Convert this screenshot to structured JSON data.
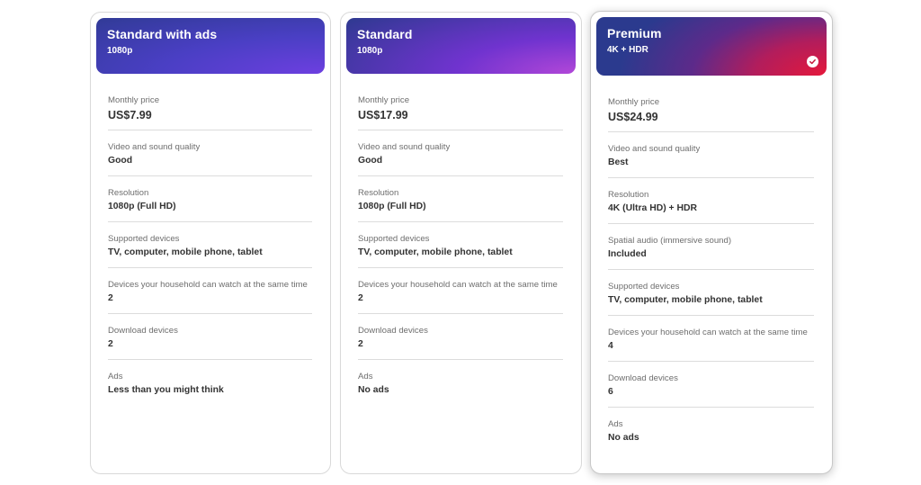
{
  "plans": [
    {
      "name": "Standard with ads",
      "resolution_badge": "1080p",
      "selected": false,
      "rows": [
        {
          "label": "Monthly price",
          "value": "US$7.99"
        },
        {
          "label": "Video and sound quality",
          "value": "Good"
        },
        {
          "label": "Resolution",
          "value": "1080p (Full HD)"
        },
        {
          "label": "Supported devices",
          "value": "TV, computer, mobile phone, tablet"
        },
        {
          "label": "Devices your household can watch at the same time",
          "value": "2"
        },
        {
          "label": "Download devices",
          "value": "2"
        },
        {
          "label": "Ads",
          "value": "Less than you might think"
        }
      ]
    },
    {
      "name": "Standard",
      "resolution_badge": "1080p",
      "selected": false,
      "rows": [
        {
          "label": "Monthly price",
          "value": "US$17.99"
        },
        {
          "label": "Video and sound quality",
          "value": "Good"
        },
        {
          "label": "Resolution",
          "value": "1080p (Full HD)"
        },
        {
          "label": "Supported devices",
          "value": "TV, computer, mobile phone, tablet"
        },
        {
          "label": "Devices your household can watch at the same time",
          "value": "2"
        },
        {
          "label": "Download devices",
          "value": "2"
        },
        {
          "label": "Ads",
          "value": "No ads"
        }
      ]
    },
    {
      "name": "Premium",
      "resolution_badge": "4K + HDR",
      "selected": true,
      "rows": [
        {
          "label": "Monthly price",
          "value": "US$24.99"
        },
        {
          "label": "Video and sound quality",
          "value": "Best"
        },
        {
          "label": "Resolution",
          "value": "4K (Ultra HD) + HDR"
        },
        {
          "label": "Spatial audio (immersive sound)",
          "value": "Included"
        },
        {
          "label": "Supported devices",
          "value": "TV, computer, mobile phone, tablet"
        },
        {
          "label": "Devices your household can watch at the same time",
          "value": "4"
        },
        {
          "label": "Download devices",
          "value": "6"
        },
        {
          "label": "Ads",
          "value": "No ads"
        }
      ]
    }
  ],
  "icons": {
    "selected": "check-circle-icon"
  },
  "colors": {
    "check_mark": "#c5163a",
    "label_text": "#6e6e6e",
    "value_text": "#333333"
  }
}
